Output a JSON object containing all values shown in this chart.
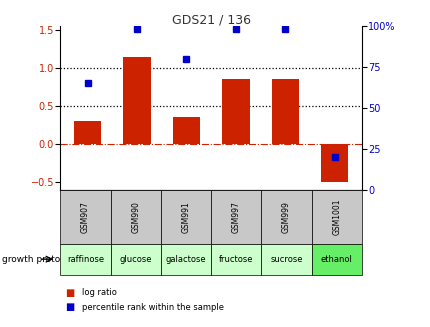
{
  "title": "GDS21 / 136",
  "samples": [
    "GSM907",
    "GSM990",
    "GSM991",
    "GSM997",
    "GSM999",
    "GSM1001"
  ],
  "protocols": [
    "raffinose",
    "glucose",
    "galactose",
    "fructose",
    "sucrose",
    "ethanol"
  ],
  "log_ratio": [
    0.3,
    1.15,
    0.36,
    0.85,
    0.85,
    -0.5
  ],
  "percentile_rank": [
    65,
    98,
    80,
    98,
    98,
    20
  ],
  "bar_color": "#cc2200",
  "dot_color": "#0000cc",
  "ylim_left": [
    -0.6,
    1.55
  ],
  "ylim_right": [
    0,
    100
  ],
  "yticks_left": [
    -0.5,
    0.0,
    0.5,
    1.0,
    1.5
  ],
  "yticks_right": [
    0,
    25,
    50,
    75,
    100
  ],
  "dotted_lines": [
    0.5,
    1.0
  ],
  "zero_line": 0.0,
  "bg_color": "#ffffff",
  "title_color": "#333333",
  "sample_bg": "#c8c8c8",
  "protocol_colors_light": "#ccffcc",
  "protocol_color_ethanol": "#66ee66",
  "legend_items": [
    "log ratio",
    "percentile rank within the sample"
  ],
  "title_fontsize": 9,
  "tick_fontsize": 7,
  "label_fontsize": 6,
  "proto_fontsize": 6
}
